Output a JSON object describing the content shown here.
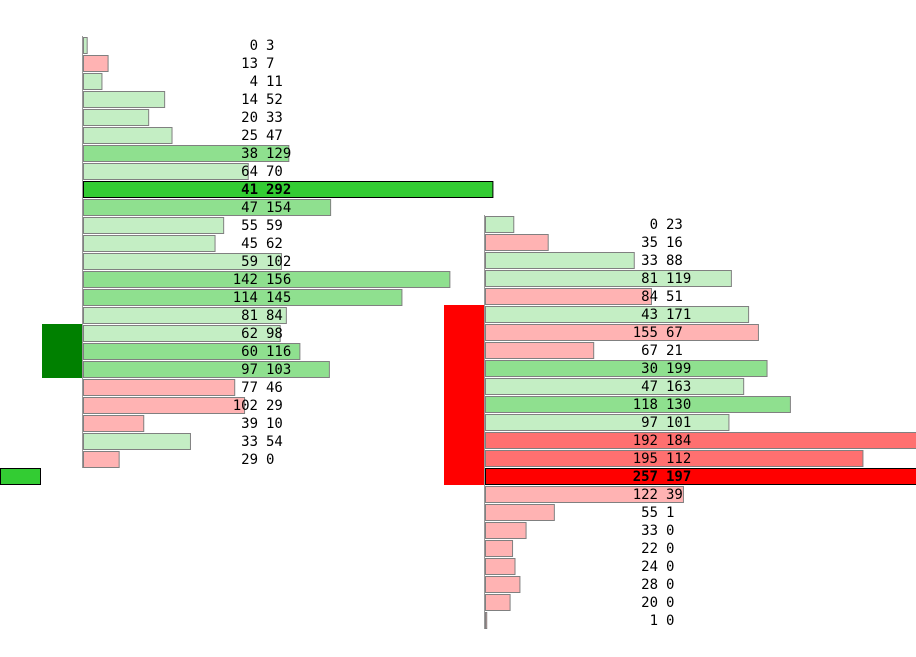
{
  "chart_data": [
    {
      "type": "bar",
      "orientation": "horizontal",
      "rows": [
        {
          "bid": 0,
          "ask": 3,
          "color": "#c4eec4"
        },
        {
          "bid": 13,
          "ask": 7,
          "color": "#ffb3b3"
        },
        {
          "bid": 4,
          "ask": 11,
          "color": "#c4eec4"
        },
        {
          "bid": 14,
          "ask": 52,
          "color": "#c4eec4"
        },
        {
          "bid": 20,
          "ask": 33,
          "color": "#c4eec4"
        },
        {
          "bid": 25,
          "ask": 47,
          "color": "#c4eec4"
        },
        {
          "bid": 38,
          "ask": 129,
          "color": "#8fe08f"
        },
        {
          "bid": 64,
          "ask": 70,
          "color": "#c4eec4"
        },
        {
          "bid": 41,
          "ask": 292,
          "color": "#33cc33",
          "highlight": true
        },
        {
          "bid": 47,
          "ask": 154,
          "color": "#8fe08f"
        },
        {
          "bid": 55,
          "ask": 59,
          "color": "#c4eec4"
        },
        {
          "bid": 45,
          "ask": 62,
          "color": "#c4eec4"
        },
        {
          "bid": 59,
          "ask": 102,
          "color": "#c4eec4"
        },
        {
          "bid": 142,
          "ask": 156,
          "color": "#8fe08f"
        },
        {
          "bid": 114,
          "ask": 145,
          "color": "#8fe08f"
        },
        {
          "bid": 81,
          "ask": 84,
          "color": "#c4eec4"
        },
        {
          "bid": 62,
          "ask": 98,
          "color": "#c4eec4"
        },
        {
          "bid": 60,
          "ask": 116,
          "color": "#8fe08f"
        },
        {
          "bid": 97,
          "ask": 103,
          "color": "#8fe08f"
        },
        {
          "bid": 77,
          "ask": 46,
          "color": "#ffb3b3"
        },
        {
          "bid": 102,
          "ask": 29,
          "color": "#ffb3b3"
        },
        {
          "bid": 39,
          "ask": 10,
          "color": "#ffb3b3"
        },
        {
          "bid": 33,
          "ask": 54,
          "color": "#c4eec4"
        },
        {
          "bid": 29,
          "ask": 0,
          "color": "#ffb3b3"
        }
      ],
      "value_area_color": "#008000",
      "close_marker_color": "#33cc33"
    },
    {
      "type": "bar",
      "orientation": "horizontal",
      "rows": [
        {
          "bid": 0,
          "ask": 23,
          "color": "#c4eec4"
        },
        {
          "bid": 35,
          "ask": 16,
          "color": "#ffb3b3"
        },
        {
          "bid": 33,
          "ask": 88,
          "color": "#c4eec4"
        },
        {
          "bid": 81,
          "ask": 119,
          "color": "#c4eec4"
        },
        {
          "bid": 84,
          "ask": 51,
          "color": "#ffb3b3"
        },
        {
          "bid": 43,
          "ask": 171,
          "color": "#c4eec4"
        },
        {
          "bid": 155,
          "ask": 67,
          "color": "#ffb3b3"
        },
        {
          "bid": 67,
          "ask": 21,
          "color": "#ffb3b3"
        },
        {
          "bid": 30,
          "ask": 199,
          "color": "#8fe08f"
        },
        {
          "bid": 47,
          "ask": 163,
          "color": "#c4eec4"
        },
        {
          "bid": 118,
          "ask": 130,
          "color": "#8fe08f"
        },
        {
          "bid": 97,
          "ask": 101,
          "color": "#c4eec4"
        },
        {
          "bid": 192,
          "ask": 184,
          "color": "#ff7070"
        },
        {
          "bid": 195,
          "ask": 112,
          "color": "#ff7070"
        },
        {
          "bid": 257,
          "ask": 197,
          "color": "#ff0000",
          "highlight": true
        },
        {
          "bid": 122,
          "ask": 39,
          "color": "#ffb3b3"
        },
        {
          "bid": 55,
          "ask": 1,
          "color": "#ffb3b3"
        },
        {
          "bid": 33,
          "ask": 0,
          "color": "#ffb3b3"
        },
        {
          "bid": 22,
          "ask": 0,
          "color": "#ffb3b3"
        },
        {
          "bid": 24,
          "ask": 0,
          "color": "#ffb3b3"
        },
        {
          "bid": 28,
          "ask": 0,
          "color": "#ffb3b3"
        },
        {
          "bid": 20,
          "ask": 0,
          "color": "#ffb3b3"
        },
        {
          "bid": 1,
          "ask": 0,
          "color": "#ffb3b3"
        }
      ],
      "value_area_color": "#ff0000"
    }
  ]
}
